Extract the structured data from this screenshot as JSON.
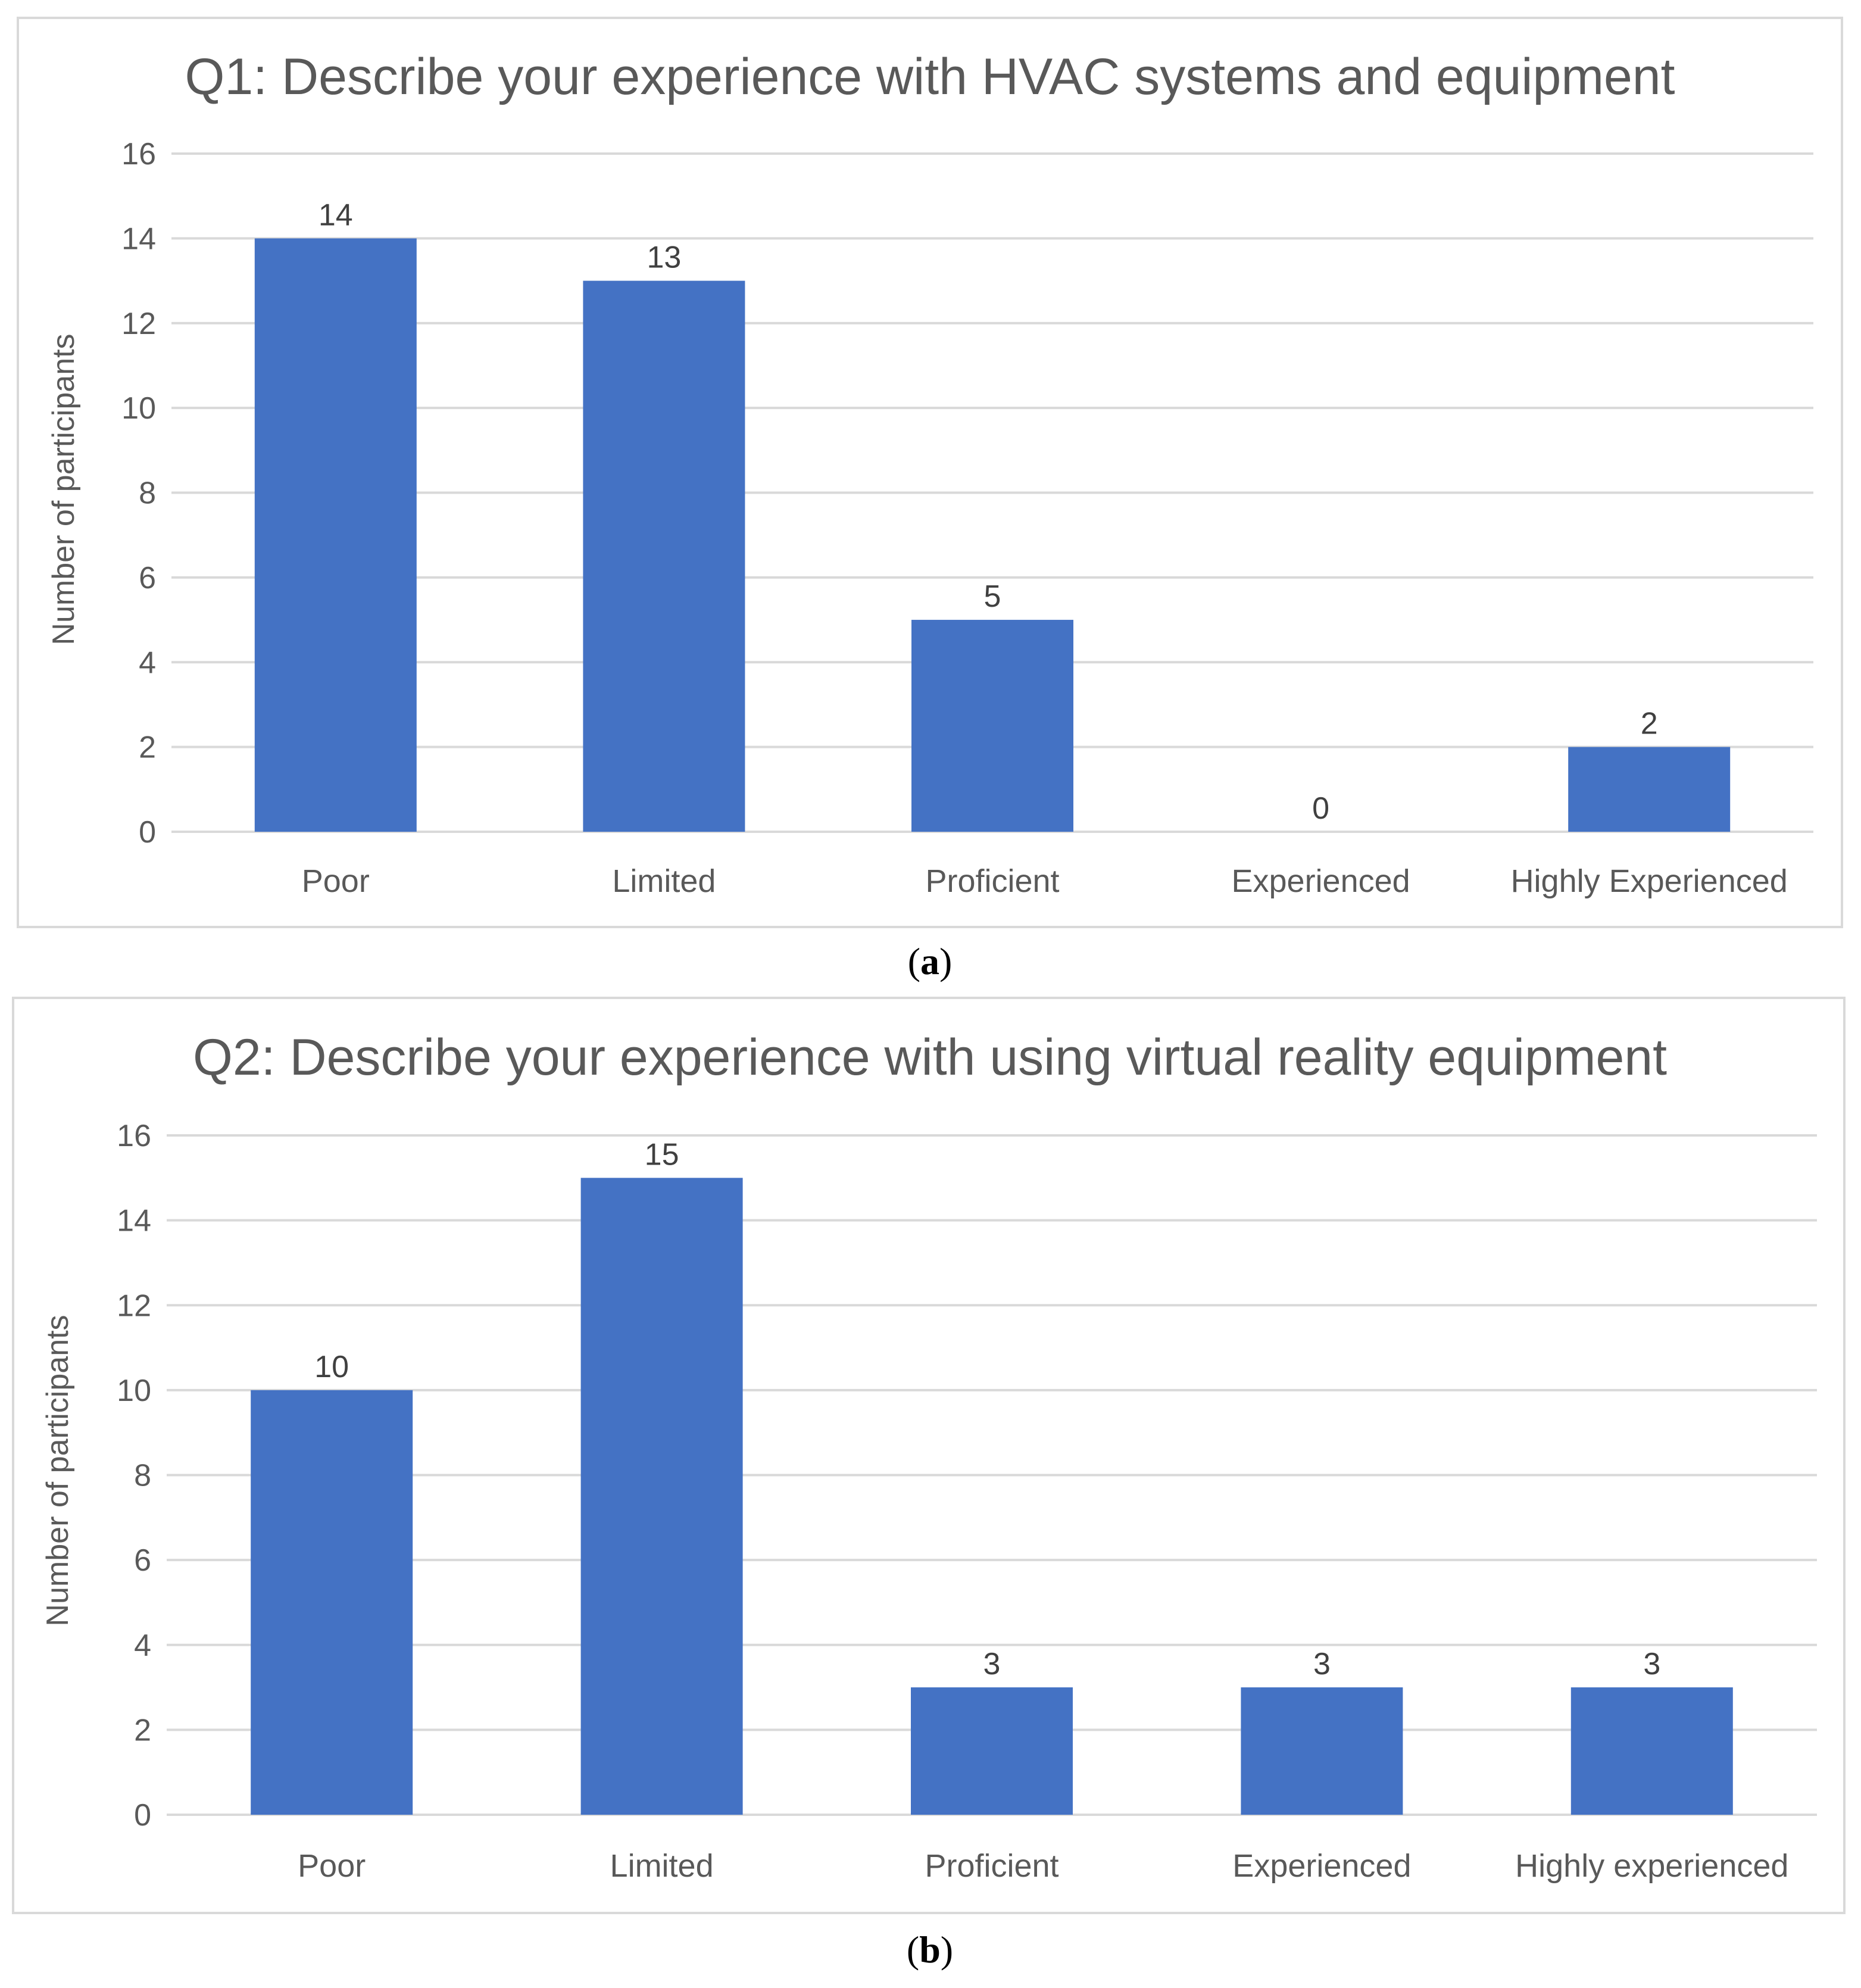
{
  "colors": {
    "bar": "#4472C4",
    "grid": "#d9d9d9",
    "frame": "#d9d9d9",
    "text": "#595959"
  },
  "chart_data": [
    {
      "type": "bar",
      "title": "Q1: Describe your experience with HVAC systems and equipment",
      "xlabel": "",
      "ylabel": "Number of participants",
      "categories": [
        "Poor",
        "Limited",
        "Proficient",
        "Experienced",
        "Highly Experienced"
      ],
      "values": [
        14,
        13,
        5,
        0,
        2
      ],
      "ylim": [
        0,
        16
      ],
      "yticks": [
        0,
        2,
        4,
        6,
        8,
        10,
        12,
        14,
        16
      ],
      "grid": true,
      "caption_letter": "a"
    },
    {
      "type": "bar",
      "title": "Q2: Describe your experience with using virtual reality equipment",
      "xlabel": "",
      "ylabel": "Number of participants",
      "categories": [
        "Poor",
        "Limited",
        "Proficient",
        "Experienced",
        "Highly experienced"
      ],
      "values": [
        10,
        15,
        3,
        3,
        3
      ],
      "ylim": [
        0,
        16
      ],
      "yticks": [
        0,
        2,
        4,
        6,
        8,
        10,
        12,
        14,
        16
      ],
      "grid": true,
      "caption_letter": "b"
    }
  ]
}
